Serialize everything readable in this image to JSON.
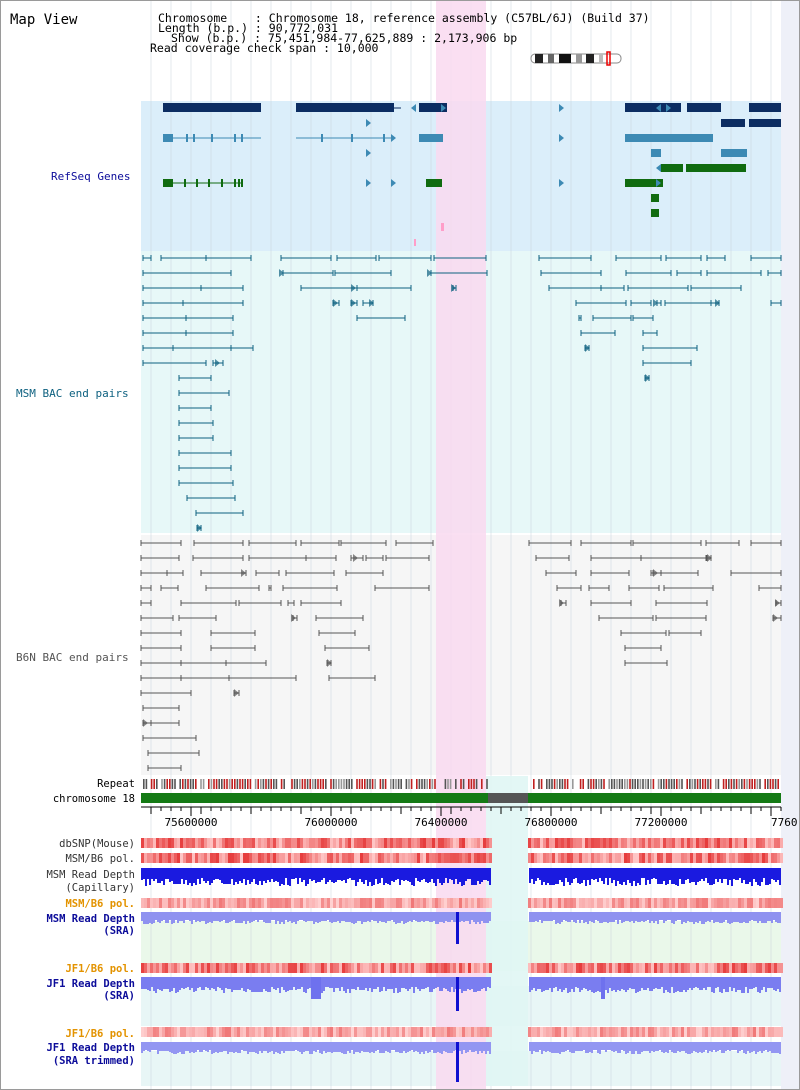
{
  "title": "Map View",
  "info": {
    "chromosome_line": "Chromosome    : Chromosome 18, reference assembly (C57BL/6J) (Build 37)",
    "length_line": "Length (b.p.) : 90,772,031",
    "show_line": "Show (b.p.) : 75,451,984-77,625,889 : 2,173,906 bp",
    "coverage_line": "Read coverage check span : 10,000"
  },
  "tracks": {
    "refseq": "RefSeq Genes",
    "msm_bac": "MSM BAC end pairs",
    "b6n_bac": "B6N BAC end pairs",
    "repeat": "Repeat",
    "chromosome": "chromosome 18",
    "dbsnp": "dbSNP(Mouse)",
    "msm_b6_pol_1": "MSM/B6 pol.",
    "msm_depth_cap_1": "MSM Read Depth",
    "msm_depth_cap_2": "(Capillary)",
    "msm_b6_pol_2": "MSM/B6 pol.",
    "msm_depth_sra_1": "MSM Read Depth",
    "msm_depth_sra_2": "(SRA)",
    "jf1_pol_1": "JF1/B6 pol.",
    "jf1_depth_sra_1": "JF1 Read Depth",
    "jf1_depth_sra_2": "(SRA)",
    "jf1_pol_2": "JF1/B6 pol.",
    "jf1_depth_trim_1": "JF1 Read Depth",
    "jf1_depth_trim_2": "(SRA trimmed)"
  },
  "ruler": {
    "ticks": [
      "75600000",
      "76000000",
      "76400000",
      "76800000",
      "77200000",
      "7760"
    ]
  },
  "colors": {
    "refseq_bg": "#dbeefa",
    "msm_bg": "#e7f8f8",
    "b6n_bg": "#f6f6f6",
    "highlight": "#f9d9f0",
    "gene_dark": "#0c2d62",
    "gene_mid": "#3d8ab4",
    "gene_green": "#106b10",
    "bac_teal": "#0e6180",
    "bac_gray": "#555555",
    "chrom_green": "#157a15",
    "label_navy": "#0c0c9a",
    "label_teal": "#0e6180",
    "label_gray": "#555555",
    "label_orange": "#e39300"
  },
  "chart_data": {
    "type": "genome-browser",
    "region": {
      "chromosome": "18",
      "start": 75451984,
      "end": 77625889
    },
    "highlight_region": [
      76396000,
      76570000
    ],
    "gap_region": [
      76570000,
      76700000
    ],
    "coverage_spikes": [
      76415000
    ]
  }
}
